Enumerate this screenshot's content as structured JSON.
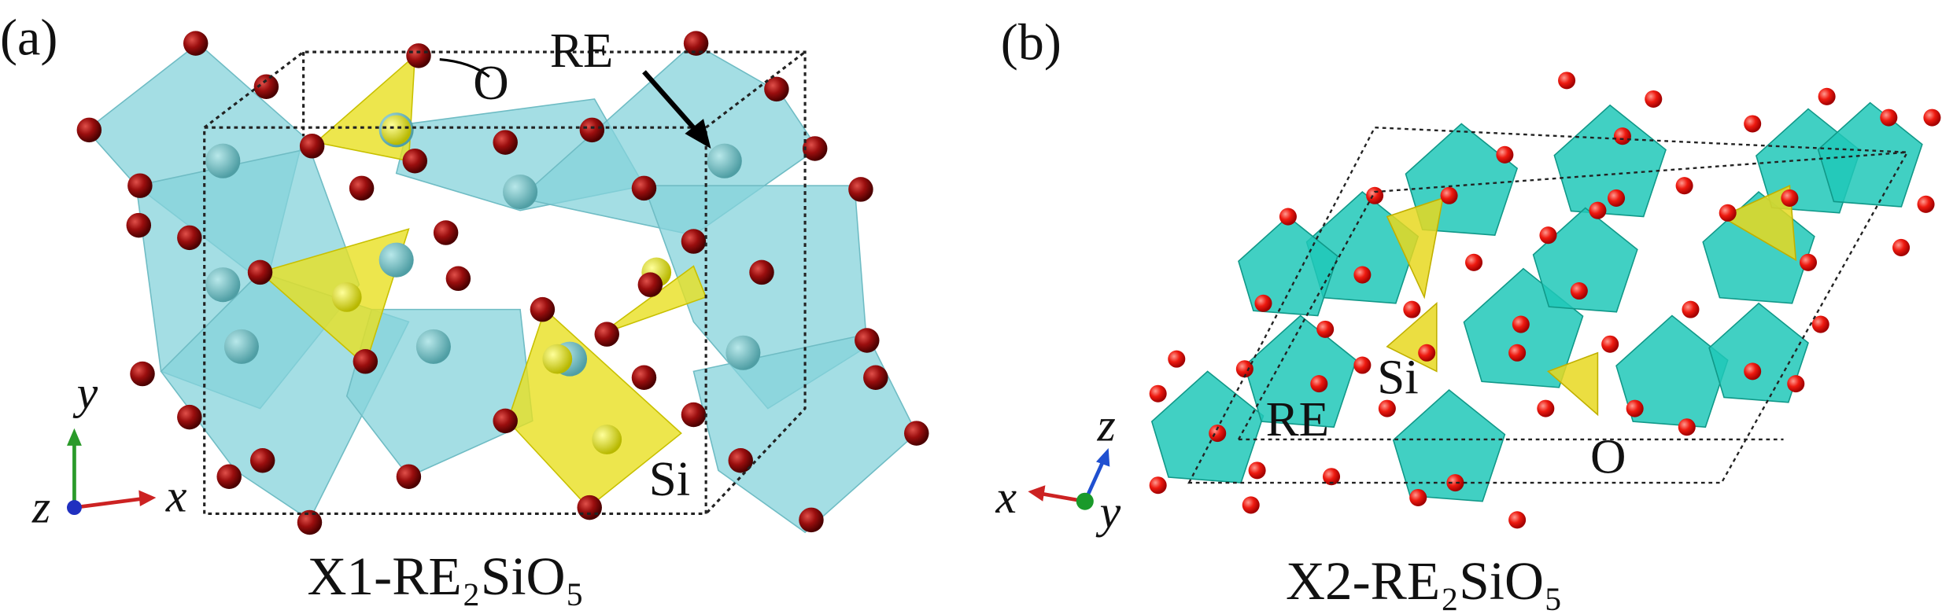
{
  "panels": [
    {
      "label": "(a)",
      "caption": "X1-RE₂SiO₅",
      "annotations": {
        "oxygen": "O",
        "rare_earth": "RE",
        "silicon": "Si"
      },
      "axes": {
        "x": "x",
        "y": "y",
        "z": "z"
      }
    },
    {
      "label": "(b)",
      "caption": "X2-RE₂SiO₅",
      "annotations": {
        "oxygen": "O",
        "rare_earth": "RE",
        "silicon": "Si"
      },
      "axes": {
        "x": "x",
        "y": "y",
        "z": "z"
      }
    }
  ]
}
